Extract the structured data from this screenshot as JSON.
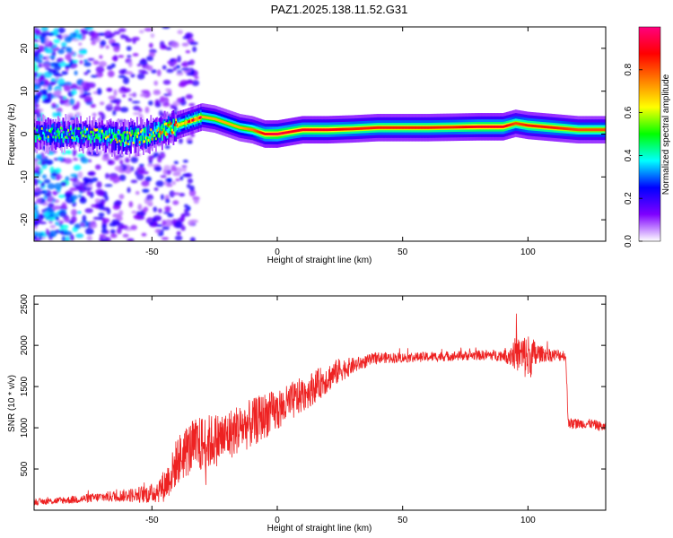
{
  "figure": {
    "title": "PAZ1.2025.138.11.52.G31"
  },
  "chart_data": [
    {
      "type": "heatmap",
      "title": "PAZ1.2025.138.11.52.G31",
      "xlabel": "Height of straight line (km)",
      "ylabel": "Frequency (Hz)",
      "xlim": [
        -97,
        131
      ],
      "ylim": [
        -25,
        25
      ],
      "x_ticks": [
        -50,
        0,
        50,
        100
      ],
      "y_ticks": [
        -20,
        -10,
        0,
        10,
        20
      ],
      "grid": false,
      "colorbar": {
        "label": "Normalized spectral amplitude",
        "range": [
          0,
          1
        ],
        "ticks": [
          0.0,
          0.2,
          0.4,
          0.6,
          0.8
        ],
        "tick_labels": [
          "0.0",
          "0.2",
          "0.4",
          "0.6",
          "0.8"
        ],
        "colors": [
          "#ffffff",
          "#7f00ff",
          "#0000ff",
          "#00ffff",
          "#00ff00",
          "#ffff00",
          "#ff7f00",
          "#ff0000",
          "#ff007f"
        ]
      },
      "ridge": {
        "x": [
          -97,
          -80,
          -60,
          -50,
          -45,
          -40,
          -35,
          -30,
          -25,
          -20,
          -15,
          -10,
          -5,
          0,
          5,
          10,
          20,
          30,
          40,
          50,
          60,
          70,
          80,
          90,
          95,
          100,
          110,
          120,
          131
        ],
        "y": [
          0,
          0,
          -1,
          0,
          1,
          2,
          3,
          4,
          3.5,
          2.5,
          1.5,
          1,
          0,
          0,
          0.5,
          1,
          1,
          1.2,
          1.5,
          1.5,
          1.5,
          1.6,
          1.7,
          1.7,
          2.5,
          2,
          1.5,
          1,
          1
        ],
        "amplitude": [
          0.3,
          0.35,
          0.45,
          0.5,
          0.55,
          0.6,
          0.65,
          0.7,
          0.7,
          0.7,
          0.7,
          0.75,
          0.9,
          0.95,
          0.9,
          0.9,
          0.9,
          0.85,
          0.85,
          0.85,
          0.85,
          0.85,
          0.9,
          0.9,
          0.8,
          0.85,
          0.85,
          0.8,
          0.8
        ]
      }
    },
    {
      "type": "line",
      "xlabel": "Height of straight line (km)",
      "ylabel": "SNR (10 * v/v)",
      "xlim": [
        -97,
        131
      ],
      "ylim": [
        0,
        2600
      ],
      "x_ticks": [
        -50,
        0,
        50,
        100
      ],
      "y_ticks": [
        500,
        1000,
        1500,
        2000,
        2500
      ],
      "grid": false,
      "color": "#ee2222",
      "series": [
        {
          "x": [
            -97,
            -90,
            -80,
            -70,
            -60,
            -50,
            -45,
            -42,
            -40,
            -35,
            -30,
            -25,
            -20,
            -15,
            -10,
            -5,
            0,
            5,
            10,
            15,
            20,
            25,
            30,
            35,
            40,
            50,
            60,
            70,
            80,
            90,
            95,
            100,
            105,
            110,
            115,
            116,
            117,
            120,
            125,
            131
          ],
          "y": [
            100,
            110,
            130,
            160,
            180,
            200,
            300,
            450,
            600,
            750,
            800,
            850,
            900,
            1000,
            1050,
            1150,
            1200,
            1300,
            1400,
            1500,
            1600,
            1700,
            1750,
            1800,
            1850,
            1850,
            1860,
            1870,
            1880,
            1880,
            1900,
            1850,
            1900,
            1880,
            1880,
            1100,
            1050,
            1050,
            1050,
            1000
          ],
          "noise": [
            40,
            40,
            50,
            60,
            80,
            120,
            200,
            250,
            300,
            330,
            350,
            330,
            320,
            300,
            300,
            280,
            250,
            240,
            220,
            200,
            180,
            150,
            100,
            80,
            70,
            60,
            60,
            60,
            60,
            70,
            200,
            300,
            100,
            80,
            70,
            80,
            70,
            60,
            60,
            60
          ]
        }
      ]
    }
  ]
}
